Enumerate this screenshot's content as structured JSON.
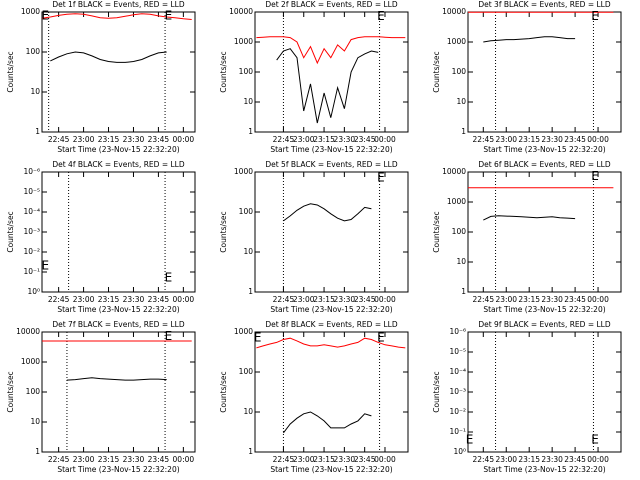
{
  "chart_data": [
    {
      "type": "line",
      "title": "Det 1f BLACK = Events, RED = LLD",
      "ylabel": "Counts/sec",
      "xlabel": "Start Time (23-Nov-15 22:32:20)",
      "log": true,
      "xlim": [
        "22:35",
        "00:07"
      ],
      "xticks": [
        "22:45",
        "23:00",
        "23:15",
        "23:30",
        "23:45",
        "00:00"
      ],
      "ylim": [
        1,
        1000
      ],
      "yticks": [
        1,
        10,
        100,
        1000
      ],
      "x": [
        "22:25",
        "22:30",
        "22:35",
        "22:40",
        "22:45",
        "22:50",
        "22:55",
        "23:00",
        "23:05",
        "23:10",
        "23:15",
        "23:20",
        "23:25",
        "23:30",
        "23:35",
        "23:40",
        "23:45",
        "23:50",
        "23:55",
        "00:00",
        "00:05",
        "00:10",
        "00:15"
      ],
      "series": [
        {
          "color": "#000000",
          "values": [
            null,
            null,
            null,
            60,
            75,
            90,
            100,
            95,
            80,
            65,
            58,
            55,
            55,
            58,
            65,
            80,
            95,
            100,
            null,
            null,
            null,
            null,
            null
          ]
        },
        {
          "color": "#ff0000",
          "values": [
            null,
            null,
            700,
            750,
            820,
            880,
            900,
            880,
            800,
            720,
            700,
            720,
            780,
            850,
            900,
            880,
            800,
            750,
            720,
            680,
            650,
            null,
            null
          ]
        }
      ],
      "markers": [
        "22:39",
        "23:49"
      ],
      "annotations": [
        {
          "text": "E",
          "x": "22:37",
          "y": 800
        },
        {
          "text": "E",
          "x": "23:51",
          "y": 800
        }
      ]
    },
    {
      "type": "line",
      "title": "Det 2f BLACK = Events, RED = LLD",
      "ylabel": "Counts/sec",
      "xlabel": "Start Time (23-Nov-15 22:32:20)",
      "log": true,
      "xlim": [
        "22:24",
        "00:17"
      ],
      "xticks": [
        "22:45",
        "23:00",
        "23:15",
        "23:30",
        "23:45",
        "00:00"
      ],
      "ylim": [
        1,
        10000
      ],
      "yticks": [
        1,
        10,
        100,
        1000,
        10000
      ],
      "x": [
        "22:25",
        "22:30",
        "22:35",
        "22:40",
        "22:45",
        "22:50",
        "22:55",
        "23:00",
        "23:05",
        "23:10",
        "23:15",
        "23:20",
        "23:25",
        "23:30",
        "23:35",
        "23:40",
        "23:45",
        "23:50",
        "23:55",
        "00:00",
        "00:05",
        "00:10",
        "00:15"
      ],
      "series": [
        {
          "color": "#000000",
          "values": [
            null,
            null,
            null,
            250,
            500,
            600,
            300,
            5,
            40,
            2,
            20,
            3,
            30,
            6,
            100,
            300,
            400,
            500,
            450,
            null,
            null,
            null,
            null
          ]
        },
        {
          "color": "#ff0000",
          "values": [
            1400,
            1450,
            1500,
            1500,
            1500,
            1400,
            1000,
            300,
            700,
            200,
            600,
            300,
            800,
            500,
            1200,
            1400,
            1500,
            1500,
            1500,
            1450,
            1400,
            1400,
            1400
          ]
        }
      ],
      "markers": [
        "22:45",
        "23:56"
      ],
      "annotations": [
        {
          "text": "E",
          "x": "23:57",
          "y": 7000
        }
      ]
    },
    {
      "type": "line",
      "title": "Det 3f BLACK = Events, RED = LLD",
      "ylabel": "Counts/sec",
      "xlabel": "Start Time (23-Nov-15 22:32:20)",
      "log": true,
      "xlim": [
        "22:35",
        "00:15"
      ],
      "xticks": [
        "22:45",
        "23:00",
        "23:15",
        "23:30",
        "23:45",
        "00:00"
      ],
      "ylim": [
        1,
        10000
      ],
      "yticks": [
        1,
        10,
        100,
        1000,
        10000
      ],
      "x": [
        "22:25",
        "22:30",
        "22:35",
        "22:40",
        "22:45",
        "22:50",
        "22:55",
        "23:00",
        "23:05",
        "23:10",
        "23:15",
        "23:20",
        "23:25",
        "23:30",
        "23:35",
        "23:40",
        "23:45",
        "23:50",
        "23:55",
        "00:00",
        "00:05",
        "00:10",
        "00:15"
      ],
      "series": [
        {
          "color": "#000000",
          "values": [
            null,
            null,
            null,
            null,
            1000,
            1100,
            1150,
            1200,
            1200,
            1250,
            1300,
            1400,
            1500,
            1500,
            1400,
            1300,
            1300,
            null,
            null,
            null,
            null,
            null,
            null
          ]
        },
        {
          "color": "#ff0000",
          "values": [
            null,
            null,
            9800,
            9800,
            9800,
            9800,
            9800,
            9800,
            9800,
            9800,
            9800,
            9800,
            9800,
            9800,
            9800,
            9800,
            9800,
            9800,
            9800,
            9800,
            9800,
            9800,
            null
          ]
        }
      ],
      "markers": [
        "22:53",
        "23:57"
      ],
      "annotations": [
        {
          "text": "E",
          "x": "23:58",
          "y": 7000
        }
      ]
    },
    {
      "type": "line",
      "title": "Det 4f BLACK = Events, RED = LLD",
      "ylabel": "Counts/sec",
      "xlabel": "Start Time (23-Nov-15 22:32:20)",
      "log": true,
      "xlim": [
        "22:35",
        "00:07"
      ],
      "xticks": [
        "22:45",
        "23:00",
        "23:15",
        "23:30",
        "23:45",
        "00:00"
      ],
      "ylim": [
        1,
        1e-06
      ],
      "yticks": [
        {
          "value": 1,
          "label": "10⁰"
        },
        {
          "value": 0.1,
          "label": "10⁻¹"
        },
        {
          "value": 0.01,
          "label": "10⁻²"
        },
        {
          "value": 0.001,
          "label": "10⁻³"
        },
        {
          "value": 0.0001,
          "label": "10⁻⁴"
        },
        {
          "value": 1e-05,
          "label": "10⁻⁵"
        },
        {
          "value": 1e-06,
          "label": "10⁻⁶"
        }
      ],
      "markers": [
        "22:51",
        "23:49"
      ],
      "annotations": [
        {
          "text": "E",
          "x": "22:37",
          "y": 0.05
        },
        {
          "text": "E",
          "x": "23:51",
          "y": 0.2
        }
      ]
    },
    {
      "type": "line",
      "title": "Det 5f BLACK = Events, RED = LLD",
      "ylabel": "Counts/sec",
      "xlabel": "Start Time (23-Nov-15 22:32:20)",
      "log": true,
      "xlim": [
        "22:24",
        "00:17"
      ],
      "xticks": [
        "22:45",
        "23:00",
        "23:15",
        "23:30",
        "23:45",
        "00:00"
      ],
      "ylim": [
        1,
        1000
      ],
      "yticks": [
        1,
        10,
        100,
        1000
      ],
      "x": [
        "22:25",
        "22:30",
        "22:35",
        "22:40",
        "22:45",
        "22:50",
        "22:55",
        "23:00",
        "23:05",
        "23:10",
        "23:15",
        "23:20",
        "23:25",
        "23:30",
        "23:35",
        "23:40",
        "23:45",
        "23:50",
        "23:55",
        "00:00",
        "00:05",
        "00:10",
        "00:15"
      ],
      "series": [
        {
          "color": "#000000",
          "values": [
            null,
            null,
            null,
            null,
            60,
            80,
            110,
            140,
            160,
            150,
            120,
            90,
            70,
            60,
            65,
            90,
            130,
            120,
            null,
            null,
            null,
            null,
            null
          ]
        }
      ],
      "markers": [
        "22:45",
        "23:56"
      ],
      "annotations": [
        {
          "text": "E",
          "x": "23:57",
          "y": 700
        }
      ]
    },
    {
      "type": "line",
      "title": "Det 6f BLACK = Events, RED = LLD",
      "ylabel": "Counts/sec",
      "xlabel": "Start Time (23-Nov-15 22:32:20)",
      "log": true,
      "xlim": [
        "22:35",
        "00:15"
      ],
      "xticks": [
        "22:45",
        "23:00",
        "23:15",
        "23:30",
        "23:45",
        "00:00"
      ],
      "ylim": [
        1,
        10000
      ],
      "yticks": [
        1,
        10,
        100,
        1000,
        10000
      ],
      "x": [
        "22:25",
        "22:30",
        "22:35",
        "22:40",
        "22:45",
        "22:50",
        "22:55",
        "23:00",
        "23:05",
        "23:10",
        "23:15",
        "23:20",
        "23:25",
        "23:30",
        "23:35",
        "23:40",
        "23:45",
        "23:50",
        "23:55",
        "00:00",
        "00:05",
        "00:10",
        "00:15"
      ],
      "series": [
        {
          "color": "#000000",
          "values": [
            null,
            null,
            null,
            null,
            250,
            330,
            350,
            340,
            330,
            320,
            310,
            300,
            310,
            320,
            300,
            290,
            280,
            null,
            null,
            null,
            null,
            null,
            null
          ]
        },
        {
          "color": "#ff0000",
          "values": [
            null,
            null,
            3000,
            3000,
            3000,
            3000,
            3000,
            3000,
            3000,
            3000,
            3000,
            3000,
            3000,
            3000,
            3000,
            3000,
            3000,
            3000,
            3000,
            3000,
            3000,
            3000,
            null
          ]
        }
      ],
      "markers": [
        "22:53",
        "23:57"
      ],
      "annotations": [
        {
          "text": "E",
          "x": "23:58",
          "y": 7000
        }
      ]
    },
    {
      "type": "line",
      "title": "Det 7f BLACK = Events, RED = LLD",
      "ylabel": "Counts/sec",
      "xlabel": "Start Time (23-Nov-15 22:32:20)",
      "log": true,
      "xlim": [
        "22:35",
        "00:07"
      ],
      "xticks": [
        "22:45",
        "23:00",
        "23:15",
        "23:30",
        "23:45",
        "00:00"
      ],
      "ylim": [
        1,
        10000
      ],
      "yticks": [
        1,
        10,
        100,
        1000,
        10000
      ],
      "x": [
        "22:25",
        "22:30",
        "22:35",
        "22:40",
        "22:45",
        "22:50",
        "22:55",
        "23:00",
        "23:05",
        "23:10",
        "23:15",
        "23:20",
        "23:25",
        "23:30",
        "23:35",
        "23:40",
        "23:45",
        "23:50",
        "23:55",
        "00:00",
        "00:05",
        "00:10",
        "00:15"
      ],
      "series": [
        {
          "color": "#000000",
          "values": [
            null,
            null,
            null,
            null,
            null,
            250,
            260,
            280,
            300,
            280,
            270,
            260,
            250,
            250,
            260,
            270,
            270,
            260,
            null,
            null,
            null,
            null,
            null
          ]
        },
        {
          "color": "#ff0000",
          "values": [
            null,
            null,
            5000,
            5000,
            5000,
            5000,
            5000,
            5000,
            5000,
            5000,
            5000,
            5000,
            5000,
            5000,
            5000,
            5000,
            5000,
            5000,
            5000,
            5000,
            5000,
            null,
            null
          ]
        }
      ],
      "markers": [
        "22:50",
        "23:49"
      ],
      "annotations": [
        {
          "text": "E",
          "x": "23:51",
          "y": 7000
        }
      ]
    },
    {
      "type": "line",
      "title": "Det 8f BLACK = Events, RED = LLD",
      "ylabel": "Counts/sec",
      "xlabel": "Start Time (23-Nov-15 22:32:20)",
      "log": true,
      "xlim": [
        "22:24",
        "00:17"
      ],
      "xticks": [
        "22:45",
        "23:00",
        "23:15",
        "23:30",
        "23:45",
        "00:00"
      ],
      "ylim": [
        1,
        1000
      ],
      "yticks": [
        1,
        10,
        100,
        1000
      ],
      "x": [
        "22:25",
        "22:30",
        "22:35",
        "22:40",
        "22:45",
        "22:50",
        "22:55",
        "23:00",
        "23:05",
        "23:10",
        "23:15",
        "23:20",
        "23:25",
        "23:30",
        "23:35",
        "23:40",
        "23:45",
        "23:50",
        "23:55",
        "00:00",
        "00:05",
        "00:10",
        "00:15"
      ],
      "series": [
        {
          "color": "#000000",
          "values": [
            null,
            null,
            null,
            null,
            3,
            5,
            7,
            9,
            10,
            8,
            6,
            4,
            4,
            4,
            5,
            6,
            9,
            8,
            null,
            null,
            null,
            null,
            null
          ]
        },
        {
          "color": "#ff0000",
          "values": [
            400,
            450,
            500,
            550,
            650,
            700,
            600,
            500,
            450,
            450,
            480,
            450,
            420,
            450,
            500,
            550,
            700,
            650,
            550,
            480,
            450,
            420,
            400
          ]
        }
      ],
      "markers": [
        "22:45",
        "23:56"
      ],
      "annotations": [
        {
          "text": "E",
          "x": "22:26",
          "y": 700
        },
        {
          "text": "E",
          "x": "23:57",
          "y": 700
        }
      ]
    },
    {
      "type": "line",
      "title": "Det 9f BLACK = Events, RED = LLD",
      "ylabel": "Counts/sec",
      "xlabel": "Start Time (23-Nov-15 22:32:20)",
      "log": true,
      "xlim": [
        "22:35",
        "00:15"
      ],
      "xticks": [
        "22:45",
        "23:00",
        "23:15",
        "23:30",
        "23:45",
        "00:00"
      ],
      "ylim": [
        1,
        1e-06
      ],
      "yticks": [
        {
          "value": 1,
          "label": "10⁰"
        },
        {
          "value": 0.1,
          "label": "10⁻¹"
        },
        {
          "value": 0.01,
          "label": "10⁻²"
        },
        {
          "value": 0.001,
          "label": "10⁻³"
        },
        {
          "value": 0.0001,
          "label": "10⁻⁴"
        },
        {
          "value": 1e-05,
          "label": "10⁻⁵"
        },
        {
          "value": 1e-06,
          "label": "10⁻⁶"
        }
      ],
      "markers": [
        "22:53",
        "23:57"
      ],
      "annotations": [
        {
          "text": "E",
          "x": "22:36",
          "y": 0.25
        },
        {
          "text": "E",
          "x": "23:58",
          "y": 0.25
        }
      ]
    }
  ]
}
